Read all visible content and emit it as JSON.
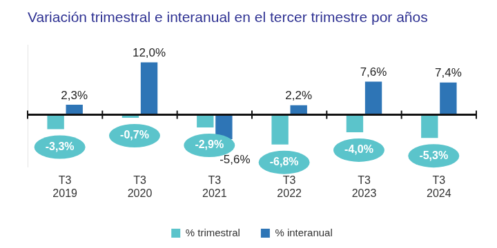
{
  "chart_data": {
    "type": "bar",
    "title": "Variación trimestral e interanual en el tercer trimestre por años",
    "categories": [
      [
        "T3",
        "2019"
      ],
      [
        "T3",
        "2020"
      ],
      [
        "T3",
        "2021"
      ],
      [
        "T3",
        "2022"
      ],
      [
        "T3",
        "2023"
      ],
      [
        "T3",
        "2024"
      ]
    ],
    "series": [
      {
        "name": "% trimestral",
        "color": "#5bc4cb",
        "values": [
          -3.3,
          -0.7,
          -2.9,
          -6.8,
          -4.0,
          -5.3
        ],
        "value_labels": [
          "-3,3%",
          "-0,7%",
          "-2,9%",
          "-6,8%",
          "-4,0%",
          "-5,3%"
        ]
      },
      {
        "name": "% interanual",
        "color": "#2e75b6",
        "values": [
          2.3,
          12.0,
          -5.6,
          2.2,
          7.6,
          7.4
        ],
        "value_labels": [
          "2,3%",
          "12,0%",
          "-5,6%",
          "2,2%",
          "7,6%",
          "7,4%"
        ]
      }
    ],
    "ylim": [
      -12,
      16
    ],
    "yticks": [
      0
    ],
    "grid": false,
    "legend": "bottom",
    "data_labels": true,
    "tick_labels": "x"
  }
}
